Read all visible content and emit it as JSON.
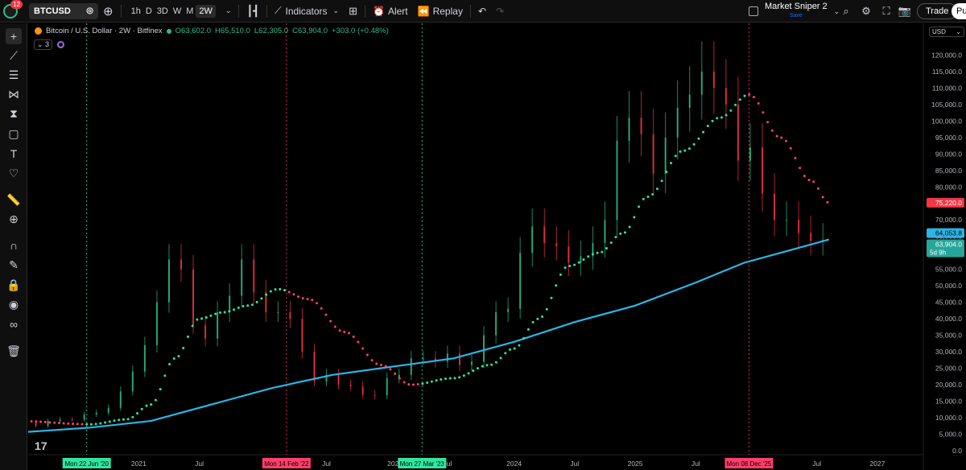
{
  "toolbar": {
    "notifications": "12",
    "symbol": "BTCUSD",
    "intervals": [
      "1h",
      "D",
      "3D",
      "W",
      "M",
      "2W"
    ],
    "active_interval": "2W",
    "indicators_label": "Indicators",
    "alert_label": "Alert",
    "replay_label": "Replay",
    "layout_name": "Market Sniper 2",
    "layout_save": "Save",
    "trade_label": "Trade",
    "publish_label": "Pu"
  },
  "legend": {
    "title": "Bitcoin / U.S. Dollar · 2W · Bitfinex",
    "open": "O63,602.0",
    "high": "H65,510.0",
    "low": "L62,305.0",
    "close": "C63,904.0",
    "change": "+303.0 (+0.48%)",
    "indicator_count": "3"
  },
  "currency": "USD",
  "colors": {
    "up": "#2ebd85",
    "down": "#f23645",
    "ma": "#2ab6e6",
    "trail_up": "#2ee6a0",
    "trail_down": "#ff3f6a",
    "price_line": "#26a69a"
  },
  "chart_data": {
    "type": "line",
    "y_axis": {
      "ticks": [
        "0.0",
        "5,000.0",
        "10,000.0",
        "15,000.0",
        "20,000.0",
        "25,000.0",
        "30,000.0",
        "35,000.0",
        "40,000.0",
        "45,000.0",
        "50,000.0",
        "55,000.0",
        "60,000.0",
        "65,000.0",
        "70,000.0",
        "75,000.0",
        "80,000.0",
        "85,000.0",
        "90,000.0",
        "95,000.0",
        "100,000.0",
        "105,000.0",
        "110,000.0",
        "115,000.0",
        "120,000.0"
      ],
      "range": [
        0,
        124000
      ]
    },
    "x_axis": {
      "ticks": [
        "2021",
        "Jul",
        "Jul",
        "202",
        "Jul",
        "2024",
        "Jul",
        "2025",
        "Jul",
        "Jul",
        "2027"
      ],
      "range": [
        2020.0,
        2027.3
      ]
    },
    "markers": [
      {
        "label": "Mon 22 Jun '20",
        "x": 2020.47,
        "color": "#2ee6a0"
      },
      {
        "label": "Mon 14 Feb '22",
        "x": 2022.12,
        "color": "#ff3f6a"
      },
      {
        "label": "Mon 27 Mar '23",
        "x": 2023.24,
        "color": "#2ee6a0"
      },
      {
        "label": "Mon 08 Dec '25",
        "x": 2025.94,
        "color": "#ff3f6a"
      }
    ],
    "price_labels": {
      "trail": "75,220.0",
      "ma": "64,053.8",
      "last": "63,904.0",
      "countdown": "5d 9h"
    },
    "series": [
      {
        "kind": "moving-average",
        "x": [
          2019.9,
          2020.5,
          2021.0,
          2021.3,
          2021.6,
          2022.0,
          2022.5,
          2023.0,
          2023.5,
          2024.0,
          2024.5,
          2025.0,
          2025.5,
          2025.9,
          2026.2,
          2026.6
        ],
        "y": [
          5500,
          7000,
          9000,
          12000,
          15000,
          19000,
          23000,
          25500,
          28000,
          33000,
          39000,
          44000,
          51000,
          57000,
          60000,
          64053
        ]
      },
      {
        "kind": "trailing-stop",
        "x": [
          2019.9,
          2020.5,
          2020.8,
          2021.0,
          2021.2,
          2021.4,
          2021.6,
          2021.8,
          2022.05,
          2022.3,
          2022.6,
          2022.9,
          2023.15,
          2023.5,
          2023.8,
          2024.0,
          2024.2,
          2024.45,
          2024.7,
          2024.9,
          2025.1,
          2025.4,
          2025.7,
          2025.94,
          2026.2,
          2026.45,
          2026.6
        ],
        "y": [
          9000,
          8000,
          9500,
          14000,
          28000,
          40000,
          42000,
          44000,
          49000,
          46000,
          36000,
          26000,
          20000,
          22000,
          26000,
          31000,
          40000,
          56000,
          60000,
          66000,
          77000,
          91000,
          101000,
          108000,
          95000,
          82000,
          75220
        ]
      },
      {
        "kind": "candles",
        "x": [
          2019.95,
          2020.05,
          2020.15,
          2020.25,
          2020.35,
          2020.45,
          2020.55,
          2020.65,
          2020.75,
          2020.85,
          2020.95,
          2021.05,
          2021.15,
          2021.25,
          2021.35,
          2021.45,
          2021.55,
          2021.65,
          2021.75,
          2021.85,
          2021.95,
          2022.05,
          2022.15,
          2022.25,
          2022.35,
          2022.45,
          2022.55,
          2022.65,
          2022.75,
          2022.85,
          2022.95,
          2023.05,
          2023.15,
          2023.25,
          2023.35,
          2023.45,
          2023.55,
          2023.65,
          2023.75,
          2023.85,
          2023.95,
          2024.05,
          2024.15,
          2024.25,
          2024.35,
          2024.45,
          2024.55,
          2024.65,
          2024.75,
          2024.85,
          2024.95,
          2025.05,
          2025.15,
          2025.25,
          2025.35,
          2025.45,
          2025.55,
          2025.65,
          2025.75,
          2025.85,
          2025.95,
          2026.05,
          2026.15,
          2026.25,
          2026.35,
          2026.45,
          2026.55
        ],
        "o": [
          9000,
          8500,
          7500,
          9000,
          9500,
          9400,
          11000,
          11500,
          13000,
          18000,
          24000,
          32000,
          45000,
          58000,
          55000,
          38000,
          34000,
          42000,
          47000,
          58000,
          48000,
          42000,
          42000,
          40000,
          30000,
          21000,
          23000,
          20000,
          19500,
          17000,
          16800,
          22000,
          23000,
          28000,
          28000,
          27000,
          29500,
          26000,
          27000,
          35000,
          42000,
          43000,
          60000,
          68000,
          63000,
          62000,
          57000,
          59000,
          63000,
          70000,
          94000,
          101000,
          96000,
          84000,
          95000,
          104000,
          108000,
          115000,
          110000,
          105000,
          88000,
          92000,
          78000,
          70000,
          70000,
          66000,
          63602
        ],
        "c": [
          8500,
          7500,
          9000,
          9500,
          9400,
          11000,
          11500,
          13000,
          18000,
          24000,
          32000,
          45000,
          58000,
          55000,
          38000,
          34000,
          42000,
          47000,
          58000,
          48000,
          42000,
          42000,
          40000,
          30000,
          21000,
          23000,
          20000,
          19500,
          17000,
          16800,
          22000,
          23000,
          28000,
          28000,
          27000,
          29500,
          26000,
          27000,
          35000,
          42000,
          43000,
          60000,
          68000,
          63000,
          62000,
          57000,
          59000,
          63000,
          70000,
          94000,
          101000,
          96000,
          84000,
          95000,
          104000,
          108000,
          115000,
          110000,
          105000,
          88000,
          92000,
          78000,
          70000,
          70000,
          66000,
          63602,
          63904
        ]
      }
    ]
  }
}
